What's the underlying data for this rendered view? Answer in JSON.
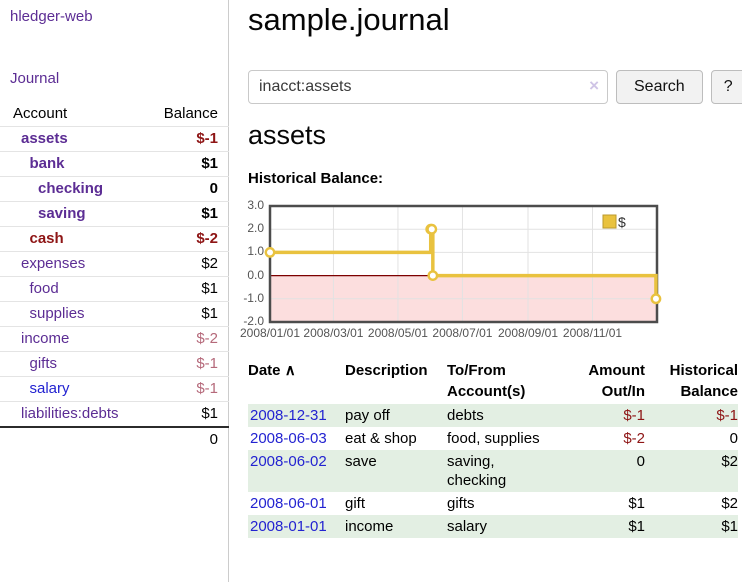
{
  "sidebar": {
    "app_title": "hledger-web",
    "nav": {
      "journal_label": "Journal"
    },
    "accounts_table": {
      "headers": {
        "account": "Account",
        "balance": "Balance"
      },
      "rows": [
        {
          "name": "assets",
          "depth": 0,
          "bold": true,
          "name_color": "purple",
          "balance": "$-1",
          "balance_color": "red",
          "balance_bold": true
        },
        {
          "name": "bank",
          "depth": 1,
          "bold": true,
          "name_color": "purple",
          "balance": "$1",
          "balance_color": "black",
          "balance_bold": true
        },
        {
          "name": "checking",
          "depth": 2,
          "bold": true,
          "name_color": "purple",
          "balance": "0",
          "balance_color": "black",
          "balance_bold": true
        },
        {
          "name": "saving",
          "depth": 2,
          "bold": true,
          "name_color": "purple",
          "balance": "$1",
          "balance_color": "black",
          "balance_bold": true
        },
        {
          "name": "cash",
          "depth": 1,
          "bold": true,
          "name_color": "red",
          "balance": "$-2",
          "balance_color": "red",
          "balance_bold": true
        },
        {
          "name": "expenses",
          "depth": 0,
          "bold": false,
          "name_color": "purple",
          "balance": "$2",
          "balance_color": "black",
          "balance_bold": false
        },
        {
          "name": "food",
          "depth": 1,
          "bold": false,
          "name_color": "purple",
          "balance": "$1",
          "balance_color": "black",
          "balance_bold": false
        },
        {
          "name": "supplies",
          "depth": 1,
          "bold": false,
          "name_color": "purple",
          "balance": "$1",
          "balance_color": "black",
          "balance_bold": false
        },
        {
          "name": "income",
          "depth": 0,
          "bold": false,
          "name_color": "purple",
          "balance": "$-2",
          "balance_color": "rose",
          "balance_bold": false
        },
        {
          "name": "gifts",
          "depth": 1,
          "bold": false,
          "name_color": "purple",
          "balance": "$-1",
          "balance_color": "rose",
          "balance_bold": false
        },
        {
          "name": "salary",
          "depth": 1,
          "bold": false,
          "name_color": "blue",
          "balance": "$-1",
          "balance_color": "rose",
          "balance_bold": false
        },
        {
          "name": "liabilities:debts",
          "depth": 0,
          "bold": false,
          "name_color": "purple",
          "balance": "$1",
          "balance_color": "black",
          "balance_bold": false
        }
      ],
      "total": "0"
    }
  },
  "header": {
    "title": "sample.journal"
  },
  "search": {
    "value": "inacct:assets",
    "clear_icon": "×",
    "button_label": "Search",
    "help_label": "?"
  },
  "account_page": {
    "heading": "assets",
    "chart_label": "Historical Balance:"
  },
  "chart_data": {
    "type": "line",
    "step": true,
    "title": "Historical Balance:",
    "legend": "$",
    "legend_position": "top-right",
    "series": [
      {
        "name": "$",
        "color": "#e9c23f",
        "points": [
          {
            "date": "2008-01-01",
            "day": 0,
            "value": 1
          },
          {
            "date": "2008-06-01",
            "day": 152,
            "value": 2
          },
          {
            "date": "2008-06-02",
            "day": 153,
            "value": 2
          },
          {
            "date": "2008-06-03",
            "day": 154,
            "value": 0
          },
          {
            "date": "2008-12-31",
            "day": 365,
            "value": -1
          }
        ]
      }
    ],
    "x_ticks": [
      {
        "label": "2008/01/01",
        "day": 0
      },
      {
        "label": "2008/03/01",
        "day": 60
      },
      {
        "label": "2008/05/01",
        "day": 121
      },
      {
        "label": "2008/07/01",
        "day": 182
      },
      {
        "label": "2008/09/01",
        "day": 244
      },
      {
        "label": "2008/11/01",
        "day": 305
      }
    ],
    "x_range_days": 366,
    "y_ticks": [
      "3.0",
      "2.0",
      "1.0",
      "0.0",
      "-1.0",
      "-2.0"
    ],
    "ylim": [
      -2,
      3
    ],
    "grid": true,
    "grid_color": "#e2e2e2",
    "border_color": "#4c4c4c",
    "negative_zone_color": "#fcdede",
    "zero_line_color": "#7d0000"
  },
  "table": {
    "headers": {
      "date": "Date",
      "sort_icon": "∧",
      "description": "Description",
      "accounts": "To/From Account(s)",
      "amount": "Amount Out/In",
      "balance": "Historical Balance"
    },
    "rows": [
      {
        "date": "2008-12-31",
        "description": "pay off",
        "accounts": "debts",
        "amount": "$-1",
        "amount_neg": true,
        "balance": "$-1",
        "balance_neg": true
      },
      {
        "date": "2008-06-03",
        "description": "eat & shop",
        "accounts": "food, supplies",
        "amount": "$-2",
        "amount_neg": true,
        "balance": "0",
        "balance_neg": false
      },
      {
        "date": "2008-06-02",
        "description": "save",
        "accounts": "saving,\nchecking",
        "amount": "0",
        "amount_neg": false,
        "balance": "$2",
        "balance_neg": false
      },
      {
        "date": "2008-06-01",
        "description": "gift",
        "accounts": "gifts",
        "amount": "$1",
        "amount_neg": false,
        "balance": "$2",
        "balance_neg": false
      },
      {
        "date": "2008-01-01",
        "description": "income",
        "accounts": "salary",
        "amount": "$1",
        "amount_neg": false,
        "balance": "$1",
        "balance_neg": false
      }
    ]
  },
  "colors": {
    "link_purple": "#5c2d94",
    "link_blue": "#2323d1",
    "negative_dark_red": "#8e1515",
    "negative_rose": "#b5697a",
    "row_stripe_green": "#e3efe3",
    "series_yellow": "#e9c23f"
  }
}
